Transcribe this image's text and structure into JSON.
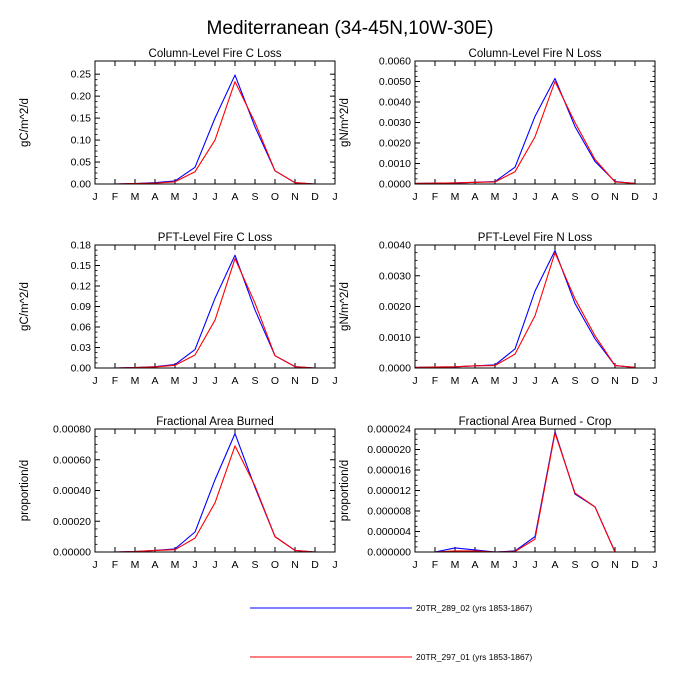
{
  "title": "Mediterranean (34-45N,10W-30E)",
  "months": [
    "J",
    "F",
    "M",
    "A",
    "M",
    "J",
    "J",
    "A",
    "S",
    "O",
    "N",
    "D",
    "J"
  ],
  "colors": {
    "series_a": "#0000ff",
    "series_b": "#ff0000"
  },
  "legend": [
    {
      "label": "20TR_289_02 (yrs 1853-1867)",
      "color": "#0000ff"
    },
    {
      "label": "20TR_297_01 (yrs 1853-1867)",
      "color": "#ff0000"
    }
  ],
  "chart_data": [
    {
      "type": "line",
      "title": "Column-Level Fire C Loss",
      "ylabel": "gC/m^2/d",
      "ylim": [
        0,
        0.28
      ],
      "yticks": [
        0,
        0.05,
        0.1,
        0.15,
        0.2,
        0.25
      ],
      "ytick_labels": [
        "0.00",
        "0.05",
        "0.10",
        "0.15",
        "0.20",
        "0.25"
      ],
      "series": [
        {
          "name": "20TR_289_02 (yrs 1853-1867)",
          "values": [
            0.0,
            0.0,
            0.001,
            0.003,
            0.007,
            0.038,
            0.15,
            0.248,
            0.13,
            0.03,
            0.003,
            0.0
          ]
        },
        {
          "name": "20TR_297_01 (yrs 1853-1867)",
          "values": [
            0.0,
            0.0,
            0.001,
            0.002,
            0.005,
            0.028,
            0.1,
            0.233,
            0.14,
            0.03,
            0.003,
            0.0
          ]
        }
      ]
    },
    {
      "type": "line",
      "title": "Column-Level Fire N Loss",
      "ylabel": "gN/m^2/d",
      "ylim": [
        0,
        0.006
      ],
      "yticks": [
        0,
        0.001,
        0.002,
        0.003,
        0.004,
        0.005,
        0.006
      ],
      "ytick_labels": [
        "0.0000",
        "0.0010",
        "0.0020",
        "0.0030",
        "0.0040",
        "0.0050",
        "0.0060"
      ],
      "series": [
        {
          "name": "20TR_289_02 (yrs 1853-1867)",
          "values": [
            3e-05,
            4e-05,
            5e-05,
            8e-05,
            0.00012,
            0.00082,
            0.0033,
            0.00515,
            0.0028,
            0.0011,
            0.00012,
            3e-05
          ]
        },
        {
          "name": "20TR_297_01 (yrs 1853-1867)",
          "values": [
            3e-05,
            4e-05,
            5e-05,
            8e-05,
            0.0001,
            0.0006,
            0.0023,
            0.005,
            0.003,
            0.0012,
            0.0001,
            3e-05
          ]
        }
      ]
    },
    {
      "type": "line",
      "title": "PFT-Level Fire C Loss",
      "ylabel": "gC/m^2/d",
      "ylim": [
        0,
        0.18
      ],
      "yticks": [
        0,
        0.03,
        0.06,
        0.09,
        0.12,
        0.15,
        0.18
      ],
      "ytick_labels": [
        "0.00",
        "0.03",
        "0.06",
        "0.09",
        "0.12",
        "0.15",
        "0.18"
      ],
      "series": [
        {
          "name": "20TR_289_02 (yrs 1853-1867)",
          "values": [
            0.0,
            0.0,
            0.0007,
            0.002,
            0.005,
            0.027,
            0.102,
            0.165,
            0.085,
            0.018,
            0.002,
            0.0
          ]
        },
        {
          "name": "20TR_297_01 (yrs 1853-1867)",
          "values": [
            0.0,
            0.0,
            0.0006,
            0.0015,
            0.004,
            0.019,
            0.07,
            0.16,
            0.095,
            0.018,
            0.002,
            0.0
          ]
        }
      ]
    },
    {
      "type": "line",
      "title": "PFT-Level Fire N Loss",
      "ylabel": "gN/m^2/d",
      "ylim": [
        0,
        0.004
      ],
      "yticks": [
        0,
        0.001,
        0.002,
        0.003,
        0.004
      ],
      "ytick_labels": [
        "0.0000",
        "0.0010",
        "0.0020",
        "0.0030",
        "0.0040"
      ],
      "series": [
        {
          "name": "20TR_289_02 (yrs 1853-1867)",
          "values": [
            2e-05,
            3e-05,
            4e-05,
            7e-05,
            0.0001,
            0.00062,
            0.0025,
            0.00382,
            0.0021,
            0.00095,
            8e-05,
            2e-05
          ]
        },
        {
          "name": "20TR_297_01 (yrs 1853-1867)",
          "values": [
            2e-05,
            3e-05,
            4e-05,
            7e-05,
            8e-05,
            0.00045,
            0.0017,
            0.00375,
            0.00225,
            0.00105,
            8e-05,
            2e-05
          ]
        }
      ]
    },
    {
      "type": "line",
      "title": "Fractional Area Burned",
      "ylabel": "proportion/d",
      "ylim": [
        0,
        0.0008
      ],
      "yticks": [
        0,
        0.0002,
        0.0004,
        0.0006,
        0.0008
      ],
      "ytick_labels": [
        "0.00000",
        "0.00020",
        "0.00040",
        "0.00060",
        "0.00080"
      ],
      "series": [
        {
          "name": "20TR_289_02 (yrs 1853-1867)",
          "values": [
            0.0,
            0.0,
            3e-06,
            1e-05,
            2e-05,
            0.00013,
            0.00047,
            0.00077,
            0.00042,
            0.0001,
            1e-05,
            0.0
          ]
        },
        {
          "name": "20TR_297_01 (yrs 1853-1867)",
          "values": [
            0.0,
            0.0,
            3e-06,
            1e-05,
            1.5e-05,
            9e-05,
            0.00032,
            0.00069,
            0.00043,
            0.0001,
            1e-05,
            0.0
          ]
        }
      ]
    },
    {
      "type": "line",
      "title": "Fractional Area Burned - Crop",
      "ylabel": "proportion/d",
      "ylim": [
        0,
        2.4e-05
      ],
      "yticks": [
        0,
        4e-06,
        8e-06,
        1.2e-05,
        1.6e-05,
        2e-05,
        2.4e-05
      ],
      "ytick_labels": [
        "0.000000",
        "0.000004",
        "0.000008",
        "0.000012",
        "0.000016",
        "0.000020",
        "0.000024"
      ],
      "series": [
        {
          "name": "20TR_289_02 (yrs 1853-1867)",
          "values": [
            0.0,
            0.0,
            8e-07,
            4e-07,
            0.0,
            2e-07,
            3e-06,
            2.35e-05,
            1.13e-05,
            8.8e-06,
            0.0,
            0.0
          ]
        },
        {
          "name": "20TR_297_01 (yrs 1853-1867)",
          "values": [
            0.0,
            0.0,
            2e-07,
            2e-07,
            0.0,
            1e-07,
            2.5e-06,
            2.32e-05,
            1.15e-05,
            8.8e-06,
            0.0,
            0.0
          ]
        }
      ]
    }
  ]
}
